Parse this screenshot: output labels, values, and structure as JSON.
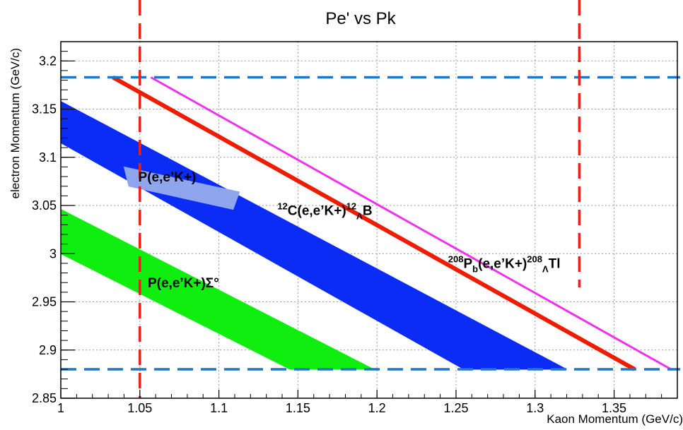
{
  "chart_data": {
    "type": "area",
    "title": "Pe' vs Pk",
    "xlabel": "Kaon Momentum (GeV/c)",
    "ylabel": "electron Momentum (GeV/c)",
    "xlim": [
      1.0,
      1.39
    ],
    "ylim": [
      2.85,
      3.22
    ],
    "grid": true,
    "xticks": [
      "1",
      "1.05",
      "1.1",
      "1.15",
      "1.2",
      "1.25",
      "1.3",
      "1.35"
    ],
    "yticks": [
      "2.85",
      "2.9",
      "2.95",
      "3",
      "3.05",
      "3.1",
      "3.15",
      "3.2"
    ],
    "reference_lines": {
      "horizontal": [
        2.88,
        3.183
      ],
      "vertical": [
        1.05,
        1.328
      ],
      "horizontal_color": "#1f77c8",
      "vertical_color": "#e8211c"
    },
    "bands": [
      {
        "label": "P(e,e’K+)Σ°",
        "color": "#10ee10",
        "polygon": [
          [
            1.0,
            3.046
          ],
          [
            1.0,
            3.0
          ],
          [
            1.145,
            2.88
          ],
          [
            1.198,
            2.88
          ]
        ]
      },
      {
        "label": "12C(e,e’K+)12ΛB",
        "color": "#0a2cf5",
        "polygon": [
          [
            1.0,
            3.158
          ],
          [
            1.0,
            3.115
          ],
          [
            1.255,
            2.88
          ],
          [
            1.32,
            2.88
          ]
        ]
      },
      {
        "label": "P(e,e’K+)",
        "color": "#8fa6ef",
        "polygon": [
          [
            1.04,
            3.09
          ],
          [
            1.043,
            3.07
          ],
          [
            1.109,
            3.046
          ],
          [
            1.113,
            3.064
          ]
        ]
      }
    ],
    "lines": [
      {
        "label": "208Pb(e,e’K+)208ΛTl",
        "color": "#ee1c00",
        "width": 6,
        "points": [
          [
            1.033,
            3.183
          ],
          [
            1.363,
            2.88
          ]
        ]
      },
      {
        "label": "",
        "color": "#ee33ee",
        "width": 3,
        "points": [
          [
            1.057,
            3.183
          ],
          [
            1.386,
            2.88
          ]
        ]
      }
    ],
    "annotations": [
      {
        "id": "p",
        "main": "P(e,e’K+)",
        "x": 1.049,
        "y": 3.075
      },
      {
        "id": "sigma",
        "main": "P(e,e’K+)Σ°",
        "x": 1.055,
        "y": 2.965
      },
      {
        "id": "c12",
        "pre": "12",
        "main": "C(e,e’K+)",
        "sup": "12",
        "sub": "Λ",
        "post": "B",
        "x": 1.137,
        "y": 3.04
      },
      {
        "id": "pb208",
        "pre": "208",
        "main": "P",
        "sub1": "b",
        "main2": "(e,e’K+)",
        "sup": "208",
        "sub": "Λ",
        "post": "Tl",
        "x": 1.245,
        "y": 2.985
      }
    ]
  }
}
